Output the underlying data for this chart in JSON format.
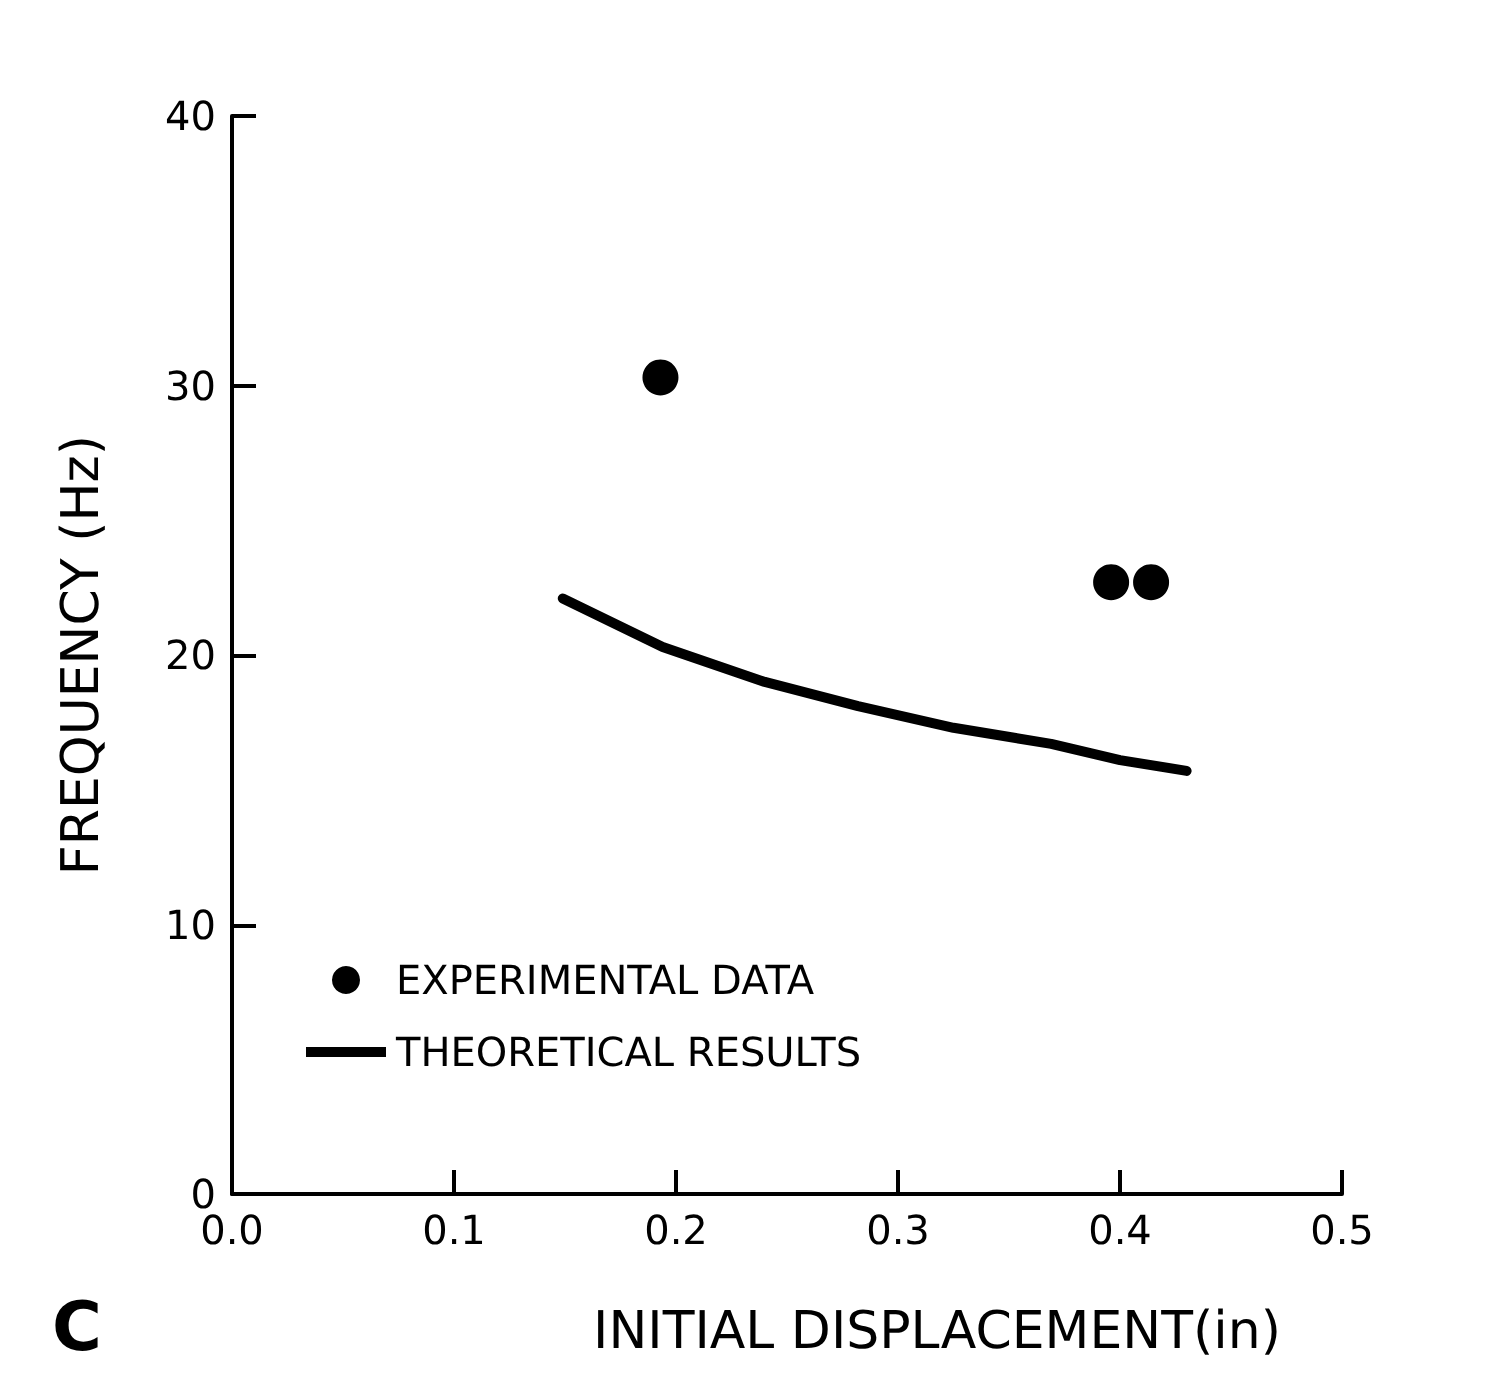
{
  "chart_data": {
    "type": "scatter",
    "xlabel": "INITIAL DISPLACEMENT(in)",
    "ylabel": "FREQUENCY (Hz)",
    "xlim": [
      0,
      0.5
    ],
    "ylim": [
      0,
      40
    ],
    "xticks": [
      {
        "value": 0,
        "label": "0.0"
      },
      0.1,
      0.2,
      0.3,
      0.4,
      0.5
    ],
    "yticks": [
      0,
      10,
      20,
      30,
      40
    ],
    "grid": false,
    "legend": "bottom left",
    "annotations": [
      "C"
    ],
    "series": [
      {
        "name": "EXPERIMENTAL DATA",
        "marker": "circle",
        "color": "#000000",
        "x": [
          0.193,
          0.396,
          0.414
        ],
        "values": [
          30.3,
          22.7,
          22.7
        ]
      },
      {
        "name": "THEORETICAL RESULTS",
        "type": "line",
        "marker": "none",
        "line_style": "solid",
        "color": "#000000",
        "x": [
          0.149,
          0.194,
          0.24,
          0.282,
          0.325,
          0.369,
          0.4,
          0.43
        ],
        "values": [
          22.1,
          20.3,
          19.0,
          18.1,
          17.3,
          16.7,
          16.1,
          15.7
        ]
      }
    ]
  }
}
